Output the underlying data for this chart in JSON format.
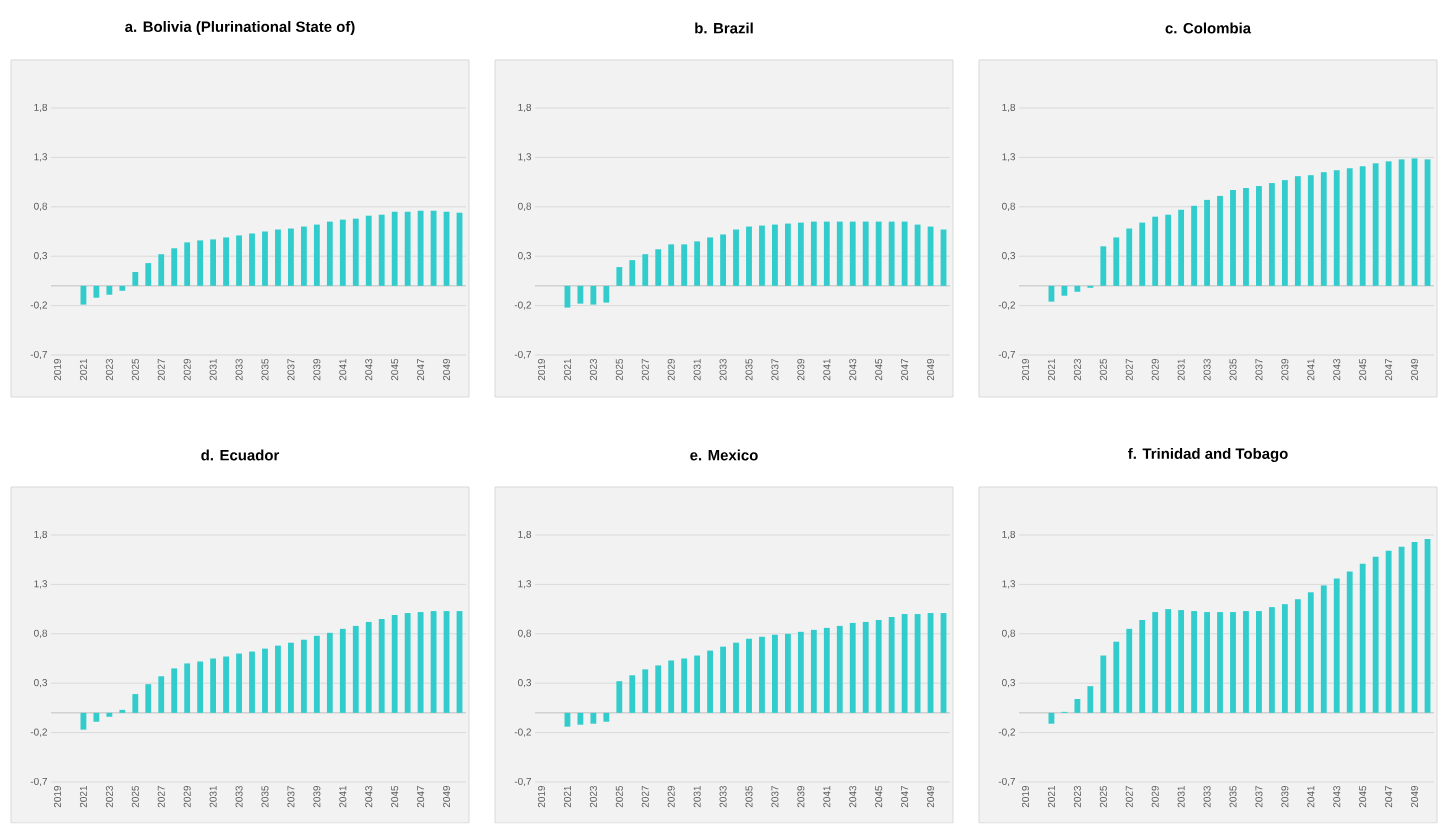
{
  "chart_data": [
    {
      "type": "bar",
      "title": "a. Bolivia (Plurinational State of)",
      "color": "#33cccc",
      "grid": "y",
      "ylim": [
        -0.7,
        1.8
      ],
      "yticks": [
        {
          "value": -0.7,
          "label": "-0,7"
        },
        {
          "value": -0.2,
          "label": "-0,2"
        },
        {
          "value": 0.3,
          "label": "0,3"
        },
        {
          "value": 0.8,
          "label": "0,8"
        },
        {
          "value": 1.3,
          "label": "1,3"
        },
        {
          "value": 1.8,
          "label": "1,8"
        }
      ],
      "categories": [
        "2019",
        null,
        "2021",
        null,
        "2023",
        null,
        "2025",
        null,
        "2027",
        null,
        "2029",
        null,
        "2031",
        null,
        "2033",
        null,
        "2035",
        null,
        "2037",
        null,
        "2039",
        null,
        "2041",
        null,
        "2043",
        null,
        "2045",
        null,
        "2047",
        null,
        "2049",
        null
      ],
      "values": [
        null,
        null,
        -0.19,
        -0.12,
        -0.09,
        -0.05,
        0.14,
        0.23,
        0.32,
        0.38,
        0.44,
        0.46,
        0.47,
        0.49,
        0.51,
        0.53,
        0.55,
        0.57,
        0.58,
        0.6,
        0.62,
        0.65,
        0.67,
        0.68,
        0.71,
        0.72,
        0.75,
        0.75,
        0.76,
        0.76,
        0.75,
        0.74
      ]
    },
    {
      "type": "bar",
      "title": "b. Brazil",
      "color": "#33cccc",
      "grid": "y",
      "ylim": [
        -0.7,
        1.8
      ],
      "yticks": [
        {
          "value": -0.7,
          "label": "-0,7"
        },
        {
          "value": -0.2,
          "label": "-0,2"
        },
        {
          "value": 0.3,
          "label": "0,3"
        },
        {
          "value": 0.8,
          "label": "0,8"
        },
        {
          "value": 1.3,
          "label": "1,3"
        },
        {
          "value": 1.8,
          "label": "1,8"
        }
      ],
      "categories": [
        "2019",
        null,
        "2021",
        null,
        "2023",
        null,
        "2025",
        null,
        "2027",
        null,
        "2029",
        null,
        "2031",
        null,
        "2033",
        null,
        "2035",
        null,
        "2037",
        null,
        "2039",
        null,
        "2041",
        null,
        "2043",
        null,
        "2045",
        null,
        "2047",
        null,
        "2049",
        null
      ],
      "values": [
        null,
        null,
        -0.22,
        -0.18,
        -0.19,
        -0.17,
        0.19,
        0.26,
        0.32,
        0.37,
        0.42,
        0.42,
        0.45,
        0.49,
        0.52,
        0.57,
        0.6,
        0.61,
        0.62,
        0.63,
        0.64,
        0.65,
        0.65,
        0.65,
        0.65,
        0.65,
        0.65,
        0.65,
        0.65,
        0.62,
        0.6,
        0.57
      ]
    },
    {
      "type": "bar",
      "title": "c. Colombia",
      "color": "#33cccc",
      "grid": "y",
      "ylim": [
        -0.7,
        1.8
      ],
      "yticks": [
        {
          "value": -0.7,
          "label": "-0,7"
        },
        {
          "value": -0.2,
          "label": "-0,2"
        },
        {
          "value": 0.3,
          "label": "0,3"
        },
        {
          "value": 0.8,
          "label": "0,8"
        },
        {
          "value": 1.3,
          "label": "1,3"
        },
        {
          "value": 1.8,
          "label": "1,8"
        }
      ],
      "categories": [
        "2019",
        null,
        "2021",
        null,
        "2023",
        null,
        "2025",
        null,
        "2027",
        null,
        "2029",
        null,
        "2031",
        null,
        "2033",
        null,
        "2035",
        null,
        "2037",
        null,
        "2039",
        null,
        "2041",
        null,
        "2043",
        null,
        "2045",
        null,
        "2047",
        null,
        "2049",
        null
      ],
      "values": [
        null,
        null,
        -0.16,
        -0.1,
        -0.06,
        -0.02,
        0.4,
        0.49,
        0.58,
        0.64,
        0.7,
        0.72,
        0.77,
        0.81,
        0.87,
        0.91,
        0.97,
        0.99,
        1.01,
        1.04,
        1.07,
        1.11,
        1.12,
        1.15,
        1.17,
        1.19,
        1.21,
        1.24,
        1.26,
        1.28,
        1.29,
        1.28
      ]
    },
    {
      "type": "bar",
      "title": "d. Ecuador",
      "color": "#33cccc",
      "grid": "y",
      "ylim": [
        -0.7,
        1.8
      ],
      "yticks": [
        {
          "value": -0.7,
          "label": "-0,7"
        },
        {
          "value": -0.2,
          "label": "-0,2"
        },
        {
          "value": 0.3,
          "label": "0,3"
        },
        {
          "value": 0.8,
          "label": "0,8"
        },
        {
          "value": 1.3,
          "label": "1,3"
        },
        {
          "value": 1.8,
          "label": "1,8"
        }
      ],
      "categories": [
        "2019",
        null,
        "2021",
        null,
        "2023",
        null,
        "2025",
        null,
        "2027",
        null,
        "2029",
        null,
        "2031",
        null,
        "2033",
        null,
        "2035",
        null,
        "2037",
        null,
        "2039",
        null,
        "2041",
        null,
        "2043",
        null,
        "2045",
        null,
        "2047",
        null,
        "2049",
        null
      ],
      "values": [
        null,
        null,
        -0.17,
        -0.09,
        -0.04,
        0.03,
        0.19,
        0.29,
        0.37,
        0.45,
        0.5,
        0.52,
        0.55,
        0.57,
        0.6,
        0.62,
        0.65,
        0.68,
        0.71,
        0.74,
        0.78,
        0.81,
        0.85,
        0.88,
        0.92,
        0.95,
        0.99,
        1.01,
        1.02,
        1.03,
        1.03,
        1.03
      ]
    },
    {
      "type": "bar",
      "title": "e. Mexico",
      "color": "#33cccc",
      "grid": "y",
      "ylim": [
        -0.7,
        1.8
      ],
      "yticks": [
        {
          "value": -0.7,
          "label": "-0,7"
        },
        {
          "value": -0.2,
          "label": "-0,2"
        },
        {
          "value": 0.3,
          "label": "0,3"
        },
        {
          "value": 0.8,
          "label": "0,8"
        },
        {
          "value": 1.3,
          "label": "1,3"
        },
        {
          "value": 1.8,
          "label": "1,8"
        }
      ],
      "categories": [
        "2019",
        null,
        "2021",
        null,
        "2023",
        null,
        "2025",
        null,
        "2027",
        null,
        "2029",
        null,
        "2031",
        null,
        "2033",
        null,
        "2035",
        null,
        "2037",
        null,
        "2039",
        null,
        "2041",
        null,
        "2043",
        null,
        "2045",
        null,
        "2047",
        null,
        "2049",
        null
      ],
      "values": [
        null,
        null,
        -0.14,
        -0.12,
        -0.11,
        -0.09,
        0.32,
        0.38,
        0.44,
        0.48,
        0.53,
        0.55,
        0.58,
        0.63,
        0.67,
        0.71,
        0.75,
        0.77,
        0.79,
        0.8,
        0.82,
        0.84,
        0.86,
        0.88,
        0.91,
        0.92,
        0.94,
        0.97,
        1.0,
        1.0,
        1.01,
        1.01
      ]
    },
    {
      "type": "bar",
      "title": "f. Trinidad and Tobago",
      "color": "#33cccc",
      "grid": "y",
      "ylim": [
        -0.7,
        1.8
      ],
      "yticks": [
        {
          "value": -0.7,
          "label": "-0,7"
        },
        {
          "value": -0.2,
          "label": "-0,2"
        },
        {
          "value": 0.3,
          "label": "0,3"
        },
        {
          "value": 0.8,
          "label": "0,8"
        },
        {
          "value": 1.3,
          "label": "1,3"
        },
        {
          "value": 1.8,
          "label": "1,8"
        }
      ],
      "categories": [
        "2019",
        null,
        "2021",
        null,
        "2023",
        null,
        "2025",
        null,
        "2027",
        null,
        "2029",
        null,
        "2031",
        null,
        "2033",
        null,
        "2035",
        null,
        "2037",
        null,
        "2039",
        null,
        "2041",
        null,
        "2043",
        null,
        "2045",
        null,
        "2047",
        null,
        "2049",
        null
      ],
      "values": [
        null,
        null,
        -0.11,
        0.01,
        0.14,
        0.27,
        0.58,
        0.72,
        0.85,
        0.94,
        1.02,
        1.05,
        1.04,
        1.03,
        1.02,
        1.02,
        1.02,
        1.03,
        1.03,
        1.07,
        1.1,
        1.15,
        1.22,
        1.29,
        1.36,
        1.43,
        1.51,
        1.58,
        1.64,
        1.68,
        1.73,
        1.76
      ]
    }
  ]
}
